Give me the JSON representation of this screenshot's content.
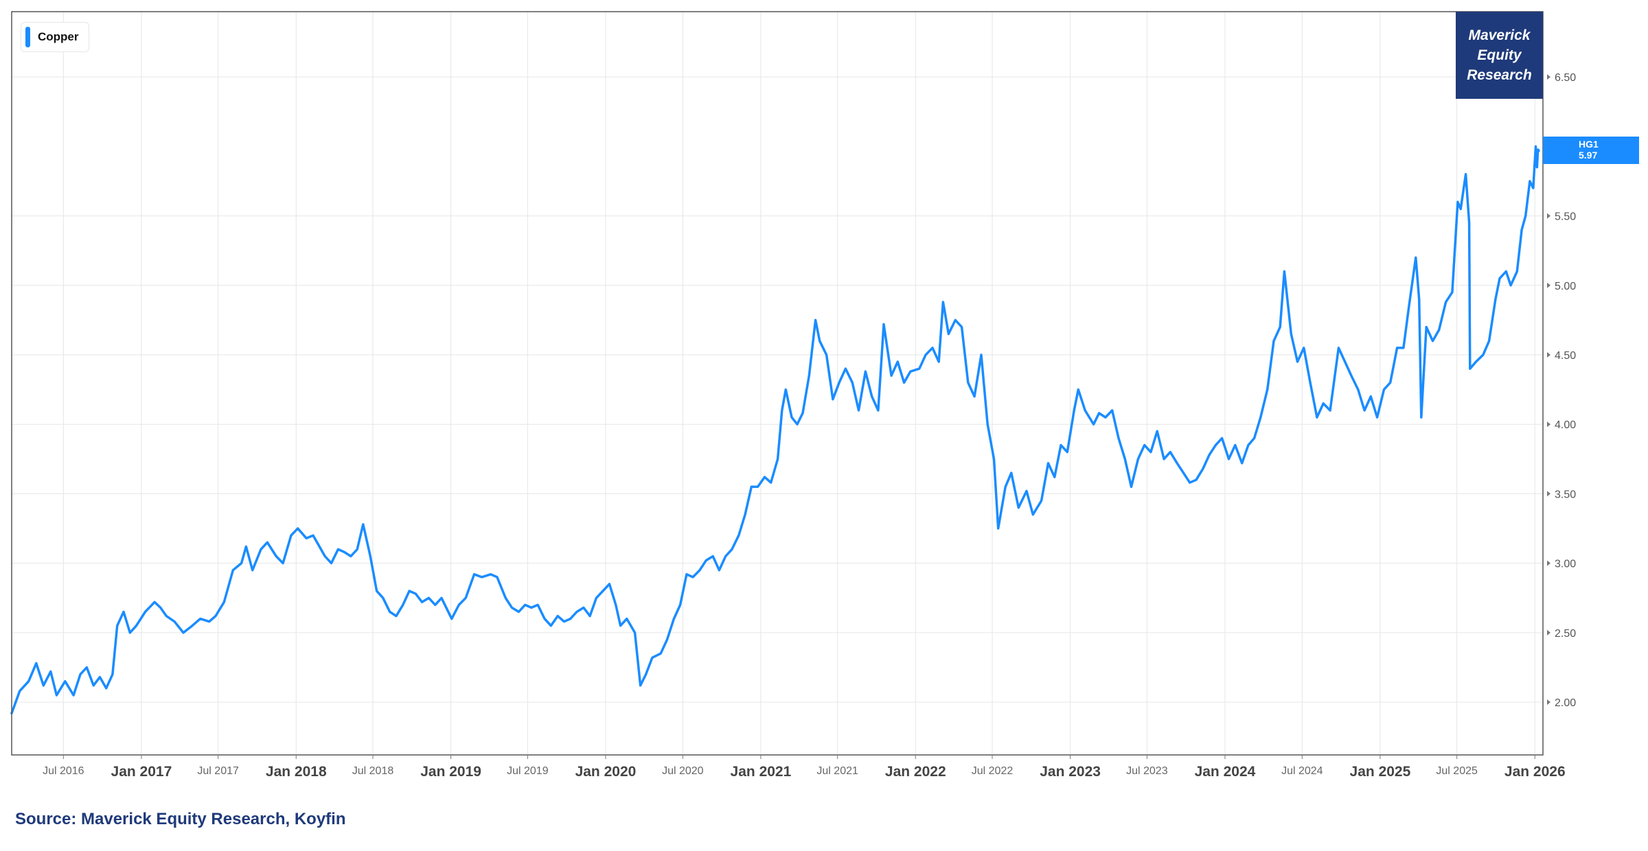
{
  "legend": {
    "label": "Copper"
  },
  "brand": {
    "line1": "Maverick",
    "line2": "Equity",
    "line3": "Research",
    "color": "#1f3a7a"
  },
  "price_tag": {
    "ticker": "HG1",
    "value": "5.97"
  },
  "source": "Source: Maverick Equity Research, Koyfin",
  "colors": {
    "series": "#1a8cff",
    "grid": "#e6e6e6",
    "axis_text": "#555555",
    "frame": "#555555"
  },
  "chart_data": {
    "type": "line",
    "title": "",
    "xlabel": "",
    "ylabel": "",
    "ylim": [
      1.62,
      6.97
    ],
    "xlim": [
      "2016-03-01",
      "2026-01-20"
    ],
    "grid": true,
    "legend_position": "top-left",
    "y_axis_position": "right",
    "yticks": [
      {
        "value": 2.0,
        "label": "2.00"
      },
      {
        "value": 2.5,
        "label": "2.50"
      },
      {
        "value": 3.0,
        "label": "3.00"
      },
      {
        "value": 3.5,
        "label": "3.50"
      },
      {
        "value": 4.0,
        "label": "4.00"
      },
      {
        "value": 4.5,
        "label": "4.50"
      },
      {
        "value": 5.0,
        "label": "5.00"
      },
      {
        "value": 5.5,
        "label": "5.50"
      },
      {
        "value": 6.5,
        "label": "6.50"
      }
    ],
    "xticks": [
      {
        "date": "2016-07-01",
        "label": "Jul 2016",
        "major": false
      },
      {
        "date": "2017-01-01",
        "label": "Jan 2017",
        "major": true
      },
      {
        "date": "2017-07-01",
        "label": "Jul 2017",
        "major": false
      },
      {
        "date": "2018-01-01",
        "label": "Jan 2018",
        "major": true
      },
      {
        "date": "2018-07-01",
        "label": "Jul 2018",
        "major": false
      },
      {
        "date": "2019-01-01",
        "label": "Jan 2019",
        "major": true
      },
      {
        "date": "2019-07-01",
        "label": "Jul 2019",
        "major": false
      },
      {
        "date": "2020-01-01",
        "label": "Jan 2020",
        "major": true
      },
      {
        "date": "2020-07-01",
        "label": "Jul 2020",
        "major": false
      },
      {
        "date": "2021-01-01",
        "label": "Jan 2021",
        "major": true
      },
      {
        "date": "2021-07-01",
        "label": "Jul 2021",
        "major": false
      },
      {
        "date": "2022-01-01",
        "label": "Jan 2022",
        "major": true
      },
      {
        "date": "2022-07-01",
        "label": "Jul 2022",
        "major": false
      },
      {
        "date": "2023-01-01",
        "label": "Jan 2023",
        "major": true
      },
      {
        "date": "2023-07-01",
        "label": "Jul 2023",
        "major": false
      },
      {
        "date": "2024-01-01",
        "label": "Jan 2024",
        "major": true
      },
      {
        "date": "2024-07-01",
        "label": "Jul 2024",
        "major": false
      },
      {
        "date": "2025-01-01",
        "label": "Jan 2025",
        "major": true
      },
      {
        "date": "2025-07-01",
        "label": "Jul 2025",
        "major": false
      },
      {
        "date": "2026-01-01",
        "label": "Jan 2026",
        "major": true
      }
    ],
    "series": [
      {
        "name": "Copper",
        "color": "#1a8cff",
        "points": [
          [
            "2016-03-01",
            1.92
          ],
          [
            "2016-03-20",
            2.08
          ],
          [
            "2016-04-10",
            2.15
          ],
          [
            "2016-04-28",
            2.28
          ],
          [
            "2016-05-15",
            2.12
          ],
          [
            "2016-06-01",
            2.22
          ],
          [
            "2016-06-15",
            2.05
          ],
          [
            "2016-07-05",
            2.15
          ],
          [
            "2016-07-25",
            2.05
          ],
          [
            "2016-08-10",
            2.2
          ],
          [
            "2016-08-25",
            2.25
          ],
          [
            "2016-09-10",
            2.12
          ],
          [
            "2016-09-25",
            2.18
          ],
          [
            "2016-10-10",
            2.1
          ],
          [
            "2016-10-25",
            2.2
          ],
          [
            "2016-11-05",
            2.55
          ],
          [
            "2016-11-20",
            2.65
          ],
          [
            "2016-12-05",
            2.5
          ],
          [
            "2016-12-20",
            2.55
          ],
          [
            "2017-01-10",
            2.65
          ],
          [
            "2017-02-01",
            2.72
          ],
          [
            "2017-02-15",
            2.68
          ],
          [
            "2017-03-01",
            2.62
          ],
          [
            "2017-03-20",
            2.58
          ],
          [
            "2017-04-10",
            2.5
          ],
          [
            "2017-05-01",
            2.55
          ],
          [
            "2017-05-20",
            2.6
          ],
          [
            "2017-06-10",
            2.58
          ],
          [
            "2017-06-25",
            2.62
          ],
          [
            "2017-07-15",
            2.72
          ],
          [
            "2017-08-05",
            2.95
          ],
          [
            "2017-08-25",
            3.0
          ],
          [
            "2017-09-05",
            3.12
          ],
          [
            "2017-09-20",
            2.95
          ],
          [
            "2017-10-10",
            3.1
          ],
          [
            "2017-10-25",
            3.15
          ],
          [
            "2017-11-15",
            3.05
          ],
          [
            "2017-12-01",
            3.0
          ],
          [
            "2017-12-20",
            3.2
          ],
          [
            "2018-01-05",
            3.25
          ],
          [
            "2018-01-25",
            3.18
          ],
          [
            "2018-02-10",
            3.2
          ],
          [
            "2018-02-25",
            3.12
          ],
          [
            "2018-03-10",
            3.05
          ],
          [
            "2018-03-25",
            3.0
          ],
          [
            "2018-04-10",
            3.1
          ],
          [
            "2018-04-25",
            3.08
          ],
          [
            "2018-05-10",
            3.05
          ],
          [
            "2018-05-25",
            3.1
          ],
          [
            "2018-06-08",
            3.28
          ],
          [
            "2018-06-25",
            3.05
          ],
          [
            "2018-07-10",
            2.8
          ],
          [
            "2018-07-25",
            2.75
          ],
          [
            "2018-08-10",
            2.65
          ],
          [
            "2018-08-25",
            2.62
          ],
          [
            "2018-09-10",
            2.7
          ],
          [
            "2018-09-25",
            2.8
          ],
          [
            "2018-10-10",
            2.78
          ],
          [
            "2018-10-25",
            2.72
          ],
          [
            "2018-11-10",
            2.75
          ],
          [
            "2018-11-25",
            2.7
          ],
          [
            "2018-12-10",
            2.75
          ],
          [
            "2019-01-03",
            2.6
          ],
          [
            "2019-01-20",
            2.7
          ],
          [
            "2019-02-05",
            2.75
          ],
          [
            "2019-02-25",
            2.92
          ],
          [
            "2019-03-15",
            2.9
          ],
          [
            "2019-04-05",
            2.92
          ],
          [
            "2019-04-20",
            2.9
          ],
          [
            "2019-05-10",
            2.75
          ],
          [
            "2019-05-25",
            2.68
          ],
          [
            "2019-06-10",
            2.65
          ],
          [
            "2019-06-25",
            2.7
          ],
          [
            "2019-07-10",
            2.68
          ],
          [
            "2019-07-25",
            2.7
          ],
          [
            "2019-08-10",
            2.6
          ],
          [
            "2019-08-25",
            2.55
          ],
          [
            "2019-09-10",
            2.62
          ],
          [
            "2019-09-25",
            2.58
          ],
          [
            "2019-10-10",
            2.6
          ],
          [
            "2019-10-25",
            2.65
          ],
          [
            "2019-11-10",
            2.68
          ],
          [
            "2019-11-25",
            2.62
          ],
          [
            "2019-12-10",
            2.75
          ],
          [
            "2020-01-10",
            2.85
          ],
          [
            "2020-01-25",
            2.7
          ],
          [
            "2020-02-05",
            2.55
          ],
          [
            "2020-02-20",
            2.6
          ],
          [
            "2020-03-10",
            2.5
          ],
          [
            "2020-03-23",
            2.12
          ],
          [
            "2020-04-05",
            2.2
          ],
          [
            "2020-04-20",
            2.32
          ],
          [
            "2020-05-10",
            2.35
          ],
          [
            "2020-05-25",
            2.45
          ],
          [
            "2020-06-10",
            2.6
          ],
          [
            "2020-06-25",
            2.7
          ],
          [
            "2020-07-10",
            2.92
          ],
          [
            "2020-07-25",
            2.9
          ],
          [
            "2020-08-10",
            2.95
          ],
          [
            "2020-08-25",
            3.02
          ],
          [
            "2020-09-10",
            3.05
          ],
          [
            "2020-09-25",
            2.95
          ],
          [
            "2020-10-10",
            3.05
          ],
          [
            "2020-10-25",
            3.1
          ],
          [
            "2020-11-10",
            3.2
          ],
          [
            "2020-11-25",
            3.35
          ],
          [
            "2020-12-10",
            3.55
          ],
          [
            "2020-12-25",
            3.55
          ],
          [
            "2021-01-10",
            3.62
          ],
          [
            "2021-01-25",
            3.58
          ],
          [
            "2021-02-10",
            3.75
          ],
          [
            "2021-02-20",
            4.1
          ],
          [
            "2021-03-01",
            4.25
          ],
          [
            "2021-03-15",
            4.05
          ],
          [
            "2021-03-28",
            4.0
          ],
          [
            "2021-04-10",
            4.08
          ],
          [
            "2021-04-25",
            4.35
          ],
          [
            "2021-05-10",
            4.75
          ],
          [
            "2021-05-20",
            4.6
          ],
          [
            "2021-06-05",
            4.5
          ],
          [
            "2021-06-20",
            4.18
          ],
          [
            "2021-07-05",
            4.3
          ],
          [
            "2021-07-20",
            4.4
          ],
          [
            "2021-08-05",
            4.3
          ],
          [
            "2021-08-20",
            4.1
          ],
          [
            "2021-09-05",
            4.38
          ],
          [
            "2021-09-20",
            4.2
          ],
          [
            "2021-10-05",
            4.1
          ],
          [
            "2021-10-18",
            4.72
          ],
          [
            "2021-11-05",
            4.35
          ],
          [
            "2021-11-20",
            4.45
          ],
          [
            "2021-12-05",
            4.3
          ],
          [
            "2021-12-20",
            4.38
          ],
          [
            "2022-01-10",
            4.4
          ],
          [
            "2022-01-25",
            4.5
          ],
          [
            "2022-02-10",
            4.55
          ],
          [
            "2022-02-25",
            4.45
          ],
          [
            "2022-03-07",
            4.88
          ],
          [
            "2022-03-20",
            4.65
          ],
          [
            "2022-04-05",
            4.75
          ],
          [
            "2022-04-20",
            4.7
          ],
          [
            "2022-05-05",
            4.3
          ],
          [
            "2022-05-20",
            4.2
          ],
          [
            "2022-06-05",
            4.5
          ],
          [
            "2022-06-20",
            4.0
          ],
          [
            "2022-07-05",
            3.75
          ],
          [
            "2022-07-15",
            3.25
          ],
          [
            "2022-08-01",
            3.55
          ],
          [
            "2022-08-15",
            3.65
          ],
          [
            "2022-09-01",
            3.4
          ],
          [
            "2022-09-20",
            3.52
          ],
          [
            "2022-10-05",
            3.35
          ],
          [
            "2022-10-25",
            3.45
          ],
          [
            "2022-11-10",
            3.72
          ],
          [
            "2022-11-25",
            3.62
          ],
          [
            "2022-12-10",
            3.85
          ],
          [
            "2022-12-25",
            3.8
          ],
          [
            "2023-01-10",
            4.1
          ],
          [
            "2023-01-20",
            4.25
          ],
          [
            "2023-02-05",
            4.1
          ],
          [
            "2023-02-25",
            4.0
          ],
          [
            "2023-03-10",
            4.08
          ],
          [
            "2023-03-25",
            4.05
          ],
          [
            "2023-04-10",
            4.1
          ],
          [
            "2023-04-25",
            3.9
          ],
          [
            "2023-05-10",
            3.75
          ],
          [
            "2023-05-25",
            3.55
          ],
          [
            "2023-06-10",
            3.75
          ],
          [
            "2023-06-25",
            3.85
          ],
          [
            "2023-07-10",
            3.8
          ],
          [
            "2023-07-25",
            3.95
          ],
          [
            "2023-08-10",
            3.75
          ],
          [
            "2023-08-25",
            3.8
          ],
          [
            "2023-09-10",
            3.72
          ],
          [
            "2023-09-25",
            3.65
          ],
          [
            "2023-10-10",
            3.58
          ],
          [
            "2023-10-25",
            3.6
          ],
          [
            "2023-11-10",
            3.68
          ],
          [
            "2023-11-25",
            3.78
          ],
          [
            "2023-12-10",
            3.85
          ],
          [
            "2023-12-25",
            3.9
          ],
          [
            "2024-01-10",
            3.75
          ],
          [
            "2024-01-25",
            3.85
          ],
          [
            "2024-02-10",
            3.72
          ],
          [
            "2024-02-25",
            3.85
          ],
          [
            "2024-03-10",
            3.9
          ],
          [
            "2024-03-25",
            4.05
          ],
          [
            "2024-04-10",
            4.25
          ],
          [
            "2024-04-25",
            4.6
          ],
          [
            "2024-05-10",
            4.7
          ],
          [
            "2024-05-20",
            5.1
          ],
          [
            "2024-06-05",
            4.65
          ],
          [
            "2024-06-20",
            4.45
          ],
          [
            "2024-07-05",
            4.55
          ],
          [
            "2024-07-20",
            4.3
          ],
          [
            "2024-08-05",
            4.05
          ],
          [
            "2024-08-20",
            4.15
          ],
          [
            "2024-09-05",
            4.1
          ],
          [
            "2024-09-25",
            4.55
          ],
          [
            "2024-10-10",
            4.45
          ],
          [
            "2024-10-25",
            4.35
          ],
          [
            "2024-11-10",
            4.25
          ],
          [
            "2024-11-25",
            4.1
          ],
          [
            "2024-12-10",
            4.2
          ],
          [
            "2024-12-25",
            4.05
          ],
          [
            "2025-01-10",
            4.25
          ],
          [
            "2025-01-25",
            4.3
          ],
          [
            "2025-02-10",
            4.55
          ],
          [
            "2025-02-25",
            4.55
          ],
          [
            "2025-03-10",
            4.85
          ],
          [
            "2025-03-26",
            5.2
          ],
          [
            "2025-04-03",
            4.9
          ],
          [
            "2025-04-08",
            4.05
          ],
          [
            "2025-04-20",
            4.7
          ],
          [
            "2025-05-05",
            4.6
          ],
          [
            "2025-05-20",
            4.68
          ],
          [
            "2025-06-05",
            4.88
          ],
          [
            "2025-06-20",
            4.95
          ],
          [
            "2025-07-03",
            5.6
          ],
          [
            "2025-07-10",
            5.55
          ],
          [
            "2025-07-22",
            5.8
          ],
          [
            "2025-07-30",
            5.45
          ],
          [
            "2025-08-01",
            4.4
          ],
          [
            "2025-08-15",
            4.45
          ],
          [
            "2025-09-01",
            4.5
          ],
          [
            "2025-09-15",
            4.6
          ],
          [
            "2025-09-30",
            4.9
          ],
          [
            "2025-10-10",
            5.05
          ],
          [
            "2025-10-25",
            5.1
          ],
          [
            "2025-11-05",
            5.0
          ],
          [
            "2025-11-20",
            5.1
          ],
          [
            "2025-12-01",
            5.4
          ],
          [
            "2025-12-10",
            5.5
          ],
          [
            "2025-12-20",
            5.75
          ],
          [
            "2025-12-28",
            5.7
          ],
          [
            "2026-01-03",
            6.0
          ],
          [
            "2026-01-06",
            5.85
          ],
          [
            "2026-01-08",
            5.97
          ]
        ]
      }
    ]
  }
}
